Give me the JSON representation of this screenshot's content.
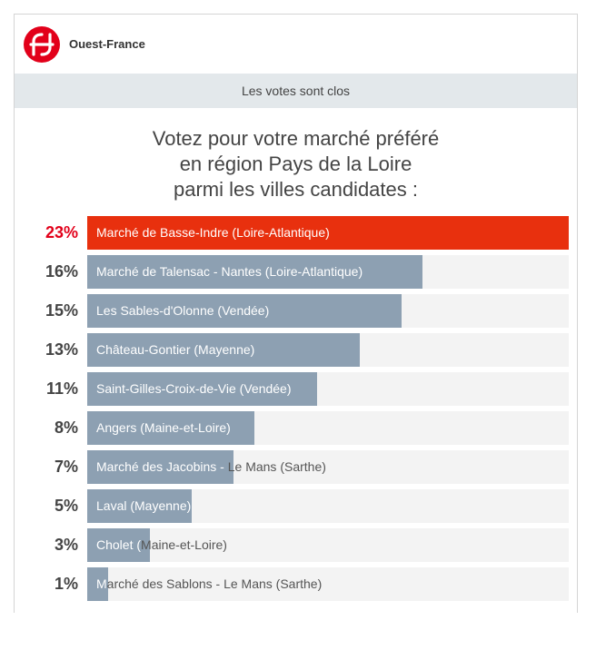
{
  "header": {
    "brand": "Ouest-France",
    "logo_color": "#e2001a"
  },
  "banner": {
    "text": "Les votes sont clos"
  },
  "question": {
    "lines": [
      "Votez pour votre marché préféré",
      "en région Pays de la Loire",
      "parmi les villes candidates :"
    ]
  },
  "colors": {
    "winner_bar": "#e8300e",
    "winner_pct": "#e2001a",
    "bar": "#8da0b2",
    "track": "#f3f3f3"
  },
  "results": [
    {
      "pct": "23%",
      "value": 23,
      "label": "Marché de Basse-Indre (Loire-Atlantique)",
      "winner": true
    },
    {
      "pct": "16%",
      "value": 16,
      "label": "Marché de Talensac - Nantes (Loire-Atlantique)"
    },
    {
      "pct": "15%",
      "value": 15,
      "label": "Les Sables-d'Olonne (Vendée)"
    },
    {
      "pct": "13%",
      "value": 13,
      "label": "Château-Gontier (Mayenne)"
    },
    {
      "pct": "11%",
      "value": 11,
      "label": "Saint-Gilles-Croix-de-Vie (Vendée)"
    },
    {
      "pct": "8%",
      "value": 8,
      "label": "Angers (Maine-et-Loire)"
    },
    {
      "pct": "7%",
      "value": 7,
      "label": "Marché des Jacobins - Le Mans (Sarthe)"
    },
    {
      "pct": "5%",
      "value": 5,
      "label": "Laval (Mayenne)"
    },
    {
      "pct": "3%",
      "value": 3,
      "label": "Cholet (Maine-et-Loire)"
    },
    {
      "pct": "1%",
      "value": 1,
      "label": "Marché des Sablons - Le Mans (Sarthe)"
    }
  ]
}
